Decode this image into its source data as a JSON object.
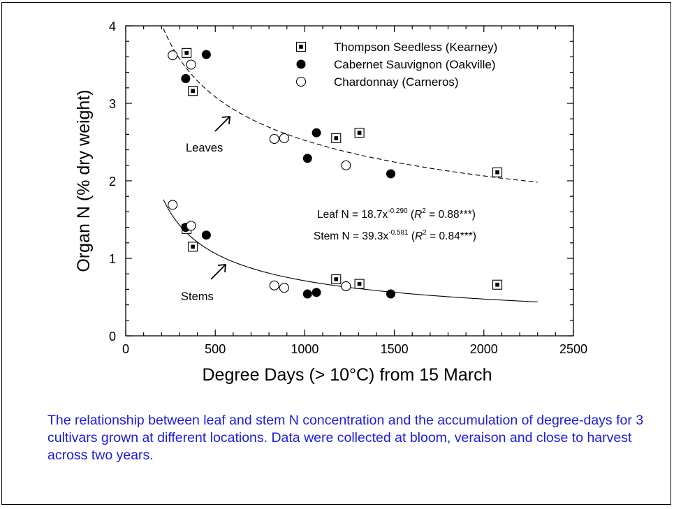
{
  "chart_data": {
    "type": "scatter",
    "xlabel": "Degree Days (> 10°C) from 15 March",
    "ylabel": "Organ N (% dry weight)",
    "xlim": [
      0,
      2500
    ],
    "ylim": [
      0,
      4
    ],
    "xticks": [
      "0",
      "500",
      "1000",
      "1500",
      "2000",
      "2500"
    ],
    "yticks": [
      "0",
      "1",
      "2",
      "3",
      "4"
    ],
    "grid": false,
    "legend_position": "top-right",
    "series": [
      {
        "name": "Thompson Seedless (Kearney)",
        "marker": "boxed-dot-square",
        "points": [
          {
            "x": 340,
            "y": 3.65
          },
          {
            "x": 375,
            "y": 3.16
          },
          {
            "x": 1175,
            "y": 2.55
          },
          {
            "x": 1305,
            "y": 2.62
          },
          {
            "x": 2075,
            "y": 2.11
          },
          {
            "x": 340,
            "y": 1.38
          },
          {
            "x": 375,
            "y": 1.15
          },
          {
            "x": 1175,
            "y": 0.73
          },
          {
            "x": 1305,
            "y": 0.67
          },
          {
            "x": 2075,
            "y": 0.66
          }
        ]
      },
      {
        "name": "Cabernet Sauvignon (Oakville)",
        "marker": "filled-circle",
        "points": [
          {
            "x": 335,
            "y": 3.32
          },
          {
            "x": 450,
            "y": 3.63
          },
          {
            "x": 1015,
            "y": 2.29
          },
          {
            "x": 1065,
            "y": 2.62
          },
          {
            "x": 1480,
            "y": 2.09
          },
          {
            "x": 335,
            "y": 1.4
          },
          {
            "x": 450,
            "y": 1.3
          },
          {
            "x": 1015,
            "y": 0.54
          },
          {
            "x": 1065,
            "y": 0.56
          },
          {
            "x": 1480,
            "y": 0.54
          }
        ]
      },
      {
        "name": "Chardonnay (Carneros)",
        "marker": "open-circle",
        "points": [
          {
            "x": 262,
            "y": 3.62
          },
          {
            "x": 365,
            "y": 3.5
          },
          {
            "x": 830,
            "y": 2.54
          },
          {
            "x": 885,
            "y": 2.55
          },
          {
            "x": 1230,
            "y": 2.2
          },
          {
            "x": 262,
            "y": 1.69
          },
          {
            "x": 365,
            "y": 1.42
          },
          {
            "x": 830,
            "y": 0.65
          },
          {
            "x": 885,
            "y": 0.62
          },
          {
            "x": 1230,
            "y": 0.64
          }
        ]
      }
    ],
    "fits": [
      {
        "organ": "Leaf",
        "a": 18.7,
        "b": -0.29,
        "style": "dashed",
        "x_range": [
          210,
          2300
        ]
      },
      {
        "organ": "Stem",
        "a": 39.3,
        "b": -0.581,
        "style": "solid",
        "x_range": [
          210,
          2300
        ]
      }
    ],
    "annotations": {
      "leaves_label": "Leaves",
      "stems_label": "Stems",
      "eq_leaf_prefix": "Leaf N = 18.7x",
      "eq_leaf_exp": "-0.290",
      "eq_leaf_r": "R",
      "eq_leaf_r_sup": "2",
      "eq_leaf_suffix": " = 0.88***)",
      "eq_stem_prefix": "Stem N = 39.3x",
      "eq_stem_exp": "-0.581",
      "eq_stem_r": "R",
      "eq_stem_r_sup": "2",
      "eq_stem_suffix": " = 0.84***)",
      "open_paren": " ("
    }
  },
  "caption": "The relationship between leaf and stem N concentration and the accumulation of degree-days for 3 cultivars grown at different locations.  Data were collected at bloom, veraison and close to harvest across two years."
}
